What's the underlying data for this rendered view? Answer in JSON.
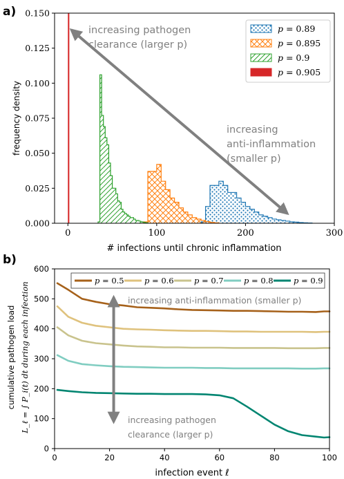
{
  "chart_data": [
    {
      "panel_label": "a)",
      "type": "bar",
      "subtype": "step-histogram",
      "xlabel": "# infections until chronic inflammation",
      "ylabel": "frequency density",
      "xlim": [
        -15,
        300
      ],
      "ylim": [
        0,
        0.15
      ],
      "x_ticks": [
        0,
        100,
        200,
        300
      ],
      "y_ticks": [
        0.0,
        0.025,
        0.05,
        0.075,
        0.1,
        0.125,
        0.15
      ],
      "y_tick_labels": [
        "0.000",
        "0.025",
        "0.050",
        "0.075",
        "0.100",
        "0.125",
        "0.150"
      ],
      "grid": false,
      "legend_position": "top-right",
      "series": [
        {
          "name": "p = 0.89",
          "legend_label": "p = 0.89",
          "color": "#1f77b4",
          "hatch": "dots",
          "bin_width": 5,
          "bin_starts": [
            150,
            155,
            160,
            165,
            170,
            175,
            180,
            185,
            190,
            195,
            200,
            205,
            210,
            215,
            220,
            225,
            230,
            235,
            240,
            245,
            250,
            255,
            260,
            265,
            270
          ],
          "values": [
            0.001,
            0.012,
            0.027,
            0.027,
            0.03,
            0.027,
            0.022,
            0.022,
            0.018,
            0.015,
            0.012,
            0.01,
            0.008,
            0.006,
            0.005,
            0.004,
            0.003,
            0.0025,
            0.002,
            0.0015,
            0.001,
            0.0008,
            0.0005,
            0.0003,
            0.0002
          ]
        },
        {
          "name": "p = 0.895",
          "legend_label": "p = 0.895",
          "color": "#ff7f0e",
          "hatch": "crosshatch",
          "bin_width": 5,
          "bin_starts": [
            85,
            90,
            95,
            100,
            105,
            110,
            115,
            120,
            125,
            130,
            135,
            140,
            145,
            150,
            155,
            160,
            165
          ],
          "values": [
            0.001,
            0.037,
            0.037,
            0.042,
            0.03,
            0.024,
            0.018,
            0.015,
            0.011,
            0.008,
            0.006,
            0.004,
            0.003,
            0.002,
            0.0012,
            0.0006,
            0.0003
          ]
        },
        {
          "name": "p = 0.9",
          "legend_label": "p = 0.9",
          "color": "#2ca02c",
          "hatch": "diagonal",
          "bin_width": 2,
          "bin_starts": [
            34,
            36,
            38,
            40,
            42,
            44,
            46,
            48,
            50,
            52,
            54,
            56,
            58,
            60,
            62,
            64,
            66,
            68,
            70,
            72,
            74,
            76,
            78,
            80,
            82,
            84,
            86,
            88
          ],
          "values": [
            0.001,
            0.106,
            0.077,
            0.069,
            0.061,
            0.056,
            0.043,
            0.034,
            0.025,
            0.025,
            0.021,
            0.016,
            0.015,
            0.01,
            0.008,
            0.007,
            0.006,
            0.005,
            0.004,
            0.004,
            0.003,
            0.002,
            0.002,
            0.0015,
            0.001,
            0.0008,
            0.0005,
            0.0003
          ]
        },
        {
          "name": "p = 0.905",
          "legend_label": "p = 0.905",
          "color": "#d62728",
          "hatch": "none",
          "bin_width": 1.6,
          "bin_starts": [
            0
          ],
          "values": [
            0.15
          ]
        }
      ],
      "annotations": [
        {
          "text": "increasing pathogen clearance (larger p)",
          "lines": [
            "increasing pathogen",
            "clearance (larger p)"
          ]
        },
        {
          "text": "increasing anti-inflammation (smaller p)",
          "lines": [
            "increasing",
            "anti-inflammation",
            "(smaller p)"
          ]
        }
      ],
      "arrow": {
        "from": [
          247,
          0.007
        ],
        "to": [
          4,
          0.138
        ],
        "double_headed": true,
        "color": "#808080"
      }
    },
    {
      "panel_label": "b)",
      "type": "line",
      "xlabel": "infection event ℓ",
      "ylabel": "cumulative pathogen load L_ℓ = ∫ P_i(t) dt during each infection",
      "ylabel_lines": [
        "cumulative pathogen load",
        "L_ℓ = ∫ P_i(t) dt  during each infection"
      ],
      "xlim": [
        0,
        100
      ],
      "ylim": [
        0,
        600
      ],
      "x_ticks": [
        0,
        20,
        40,
        60,
        80,
        100
      ],
      "y_ticks": [
        0,
        100,
        200,
        300,
        400,
        500,
        600
      ],
      "grid": false,
      "legend_position": "top",
      "x": [
        1,
        5,
        10,
        15,
        20,
        25,
        30,
        35,
        40,
        45,
        50,
        55,
        60,
        65,
        70,
        75,
        80,
        85,
        90,
        95,
        98,
        100
      ],
      "series": [
        {
          "name": "p = 0.5",
          "legend_label": "p = 0.5",
          "color": "#a6611a",
          "values": [
            552,
            530,
            500,
            490,
            482,
            478,
            472,
            470,
            468,
            465,
            463,
            462,
            461,
            460,
            460,
            459,
            458,
            457,
            457,
            456,
            458,
            458
          ]
        },
        {
          "name": "p = 0.6",
          "legend_label": "p = 0.6",
          "color": "#dfc27d",
          "values": [
            475,
            440,
            420,
            410,
            405,
            400,
            398,
            397,
            395,
            394,
            393,
            393,
            392,
            391,
            391,
            390,
            390,
            390,
            390,
            389,
            390,
            390
          ]
        },
        {
          "name": "p = 0.7",
          "legend_label": "p = 0.7",
          "color": "#c9c38d",
          "values": [
            405,
            378,
            360,
            352,
            348,
            344,
            341,
            340,
            338,
            338,
            337,
            337,
            337,
            336,
            336,
            336,
            336,
            335,
            335,
            335,
            336,
            336
          ]
        },
        {
          "name": "p = 0.8",
          "legend_label": "p = 0.8",
          "color": "#80cdc1",
          "values": [
            312,
            293,
            282,
            278,
            275,
            273,
            272,
            271,
            270,
            270,
            270,
            269,
            269,
            268,
            268,
            268,
            268,
            268,
            267,
            267,
            268,
            268
          ]
        },
        {
          "name": "p = 0.9",
          "legend_label": "p = 0.9",
          "color": "#018571",
          "values": [
            196,
            192,
            188,
            186,
            185,
            184,
            183,
            183,
            182,
            182,
            182,
            181,
            178,
            168,
            140,
            110,
            80,
            58,
            45,
            40,
            37,
            38
          ]
        }
      ],
      "annotations": [
        {
          "text": "increasing anti-inflammation (smaller p)"
        },
        {
          "text": "increasing pathogen clearance (larger p)",
          "lines": [
            "increasing pathogen",
            "clearance (larger p)"
          ]
        }
      ],
      "arrow": {
        "from": [
          21.5,
          90
        ],
        "to": [
          21.5,
          505
        ],
        "double_headed": true,
        "color": "#808080"
      }
    }
  ]
}
